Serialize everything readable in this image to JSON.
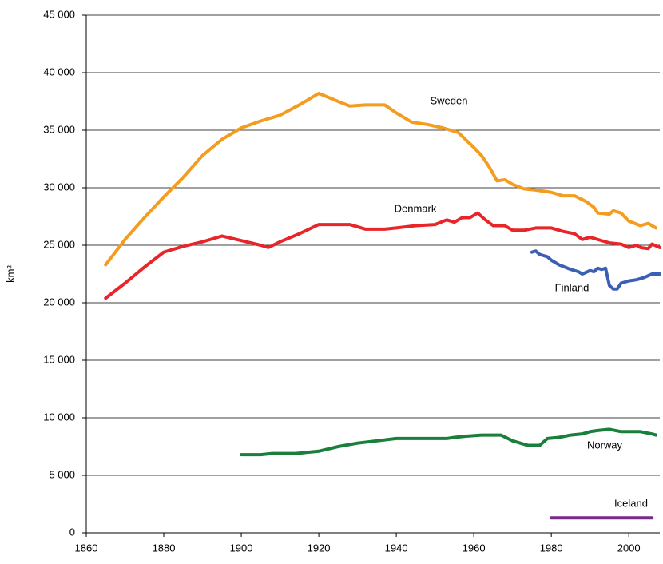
{
  "chart_data": {
    "type": "line",
    "y_label": "km²",
    "xlim": [
      1860,
      2008
    ],
    "xticks": [
      1860,
      1880,
      1900,
      1920,
      1940,
      1960,
      1980,
      2000
    ],
    "ylim": [
      0,
      45000
    ],
    "yticks": [
      {
        "value": 0,
        "label": "0"
      },
      {
        "value": 5000,
        "label": "5 000"
      },
      {
        "value": 10000,
        "label": "10 000"
      },
      {
        "value": 15000,
        "label": "15 000"
      },
      {
        "value": 20000,
        "label": "20 000"
      },
      {
        "value": 25000,
        "label": "25 000"
      },
      {
        "value": 30000,
        "label": "30 000"
      },
      {
        "value": 35000,
        "label": "35 000"
      },
      {
        "value": 40000,
        "label": "40 000"
      },
      {
        "value": 45000,
        "label": "45 000"
      }
    ],
    "grid": true,
    "series": [
      {
        "name": "Sweden",
        "color": "#f39c1f",
        "x": [
          1865,
          1870,
          1875,
          1880,
          1885,
          1890,
          1895,
          1900,
          1905,
          1910,
          1915,
          1920,
          1925,
          1928,
          1932,
          1937,
          1940,
          1944,
          1948,
          1952,
          1956,
          1960,
          1962,
          1964,
          1966,
          1968,
          1970,
          1973,
          1976,
          1980,
          1983,
          1986,
          1989,
          1991,
          1992,
          1995,
          1996,
          1998,
          2000,
          2003,
          2005,
          2007
        ],
        "values": [
          23300,
          25500,
          27400,
          29200,
          30900,
          32800,
          34200,
          35200,
          35800,
          36300,
          37200,
          38200,
          37500,
          37100,
          37200,
          37200,
          36500,
          35700,
          35500,
          35200,
          34800,
          33500,
          32800,
          31800,
          30600,
          30700,
          30300,
          29900,
          29800,
          29600,
          29300,
          29300,
          28800,
          28300,
          27800,
          27700,
          28000,
          27800,
          27100,
          26700,
          26900,
          26500
        ]
      },
      {
        "name": "Denmark",
        "color": "#e8262a",
        "x": [
          1865,
          1870,
          1875,
          1880,
          1885,
          1890,
          1895,
          1900,
          1905,
          1907,
          1910,
          1915,
          1920,
          1925,
          1928,
          1932,
          1937,
          1940,
          1945,
          1950,
          1953,
          1955,
          1957,
          1959,
          1961,
          1963,
          1965,
          1968,
          1970,
          1973,
          1976,
          1980,
          1983,
          1986,
          1988,
          1990,
          1993,
          1995,
          1998,
          2000,
          2002,
          2003,
          2005,
          2006,
          2008
        ],
        "values": [
          20400,
          21700,
          23100,
          24400,
          24900,
          25300,
          25800,
          25400,
          25000,
          24800,
          25300,
          26000,
          26800,
          26800,
          26800,
          26400,
          26400,
          26500,
          26700,
          26800,
          27200,
          27000,
          27400,
          27400,
          27800,
          27200,
          26700,
          26700,
          26300,
          26300,
          26500,
          26500,
          26200,
          26000,
          25500,
          25700,
          25400,
          25200,
          25100,
          24800,
          25000,
          24800,
          24700,
          25100,
          24800
        ]
      },
      {
        "name": "Finland",
        "color": "#3b5fb5",
        "x": [
          1975,
          1976,
          1977,
          1979,
          1980,
          1982,
          1985,
          1987,
          1988,
          1990,
          1991,
          1992,
          1993,
          1994,
          1995,
          1996,
          1997,
          1998,
          2000,
          2002,
          2004,
          2006,
          2008
        ],
        "values": [
          24400,
          24500,
          24200,
          24000,
          23700,
          23300,
          22900,
          22700,
          22500,
          22800,
          22700,
          23000,
          22900,
          23000,
          21500,
          21200,
          21200,
          21700,
          21900,
          22000,
          22200,
          22500,
          22500
        ]
      },
      {
        "name": "Norway",
        "color": "#1a7f3a",
        "x": [
          1900,
          1905,
          1908,
          1914,
          1920,
          1925,
          1930,
          1935,
          1940,
          1945,
          1953,
          1955,
          1958,
          1962,
          1967,
          1970,
          1972,
          1974,
          1977,
          1979,
          1982,
          1985,
          1988,
          1990,
          1992,
          1995,
          1998,
          2003,
          2006,
          2007
        ],
        "values": [
          6800,
          6800,
          6900,
          6900,
          7100,
          7500,
          7800,
          8000,
          8200,
          8200,
          8200,
          8300,
          8400,
          8500,
          8500,
          8000,
          7800,
          7600,
          7600,
          8200,
          8300,
          8500,
          8600,
          8800,
          8900,
          9000,
          8800,
          8800,
          8600,
          8500
        ]
      },
      {
        "name": "Iceland",
        "color": "#7b2a8a",
        "x": [
          1980,
          2006
        ],
        "values": [
          1300,
          1300
        ]
      }
    ]
  }
}
